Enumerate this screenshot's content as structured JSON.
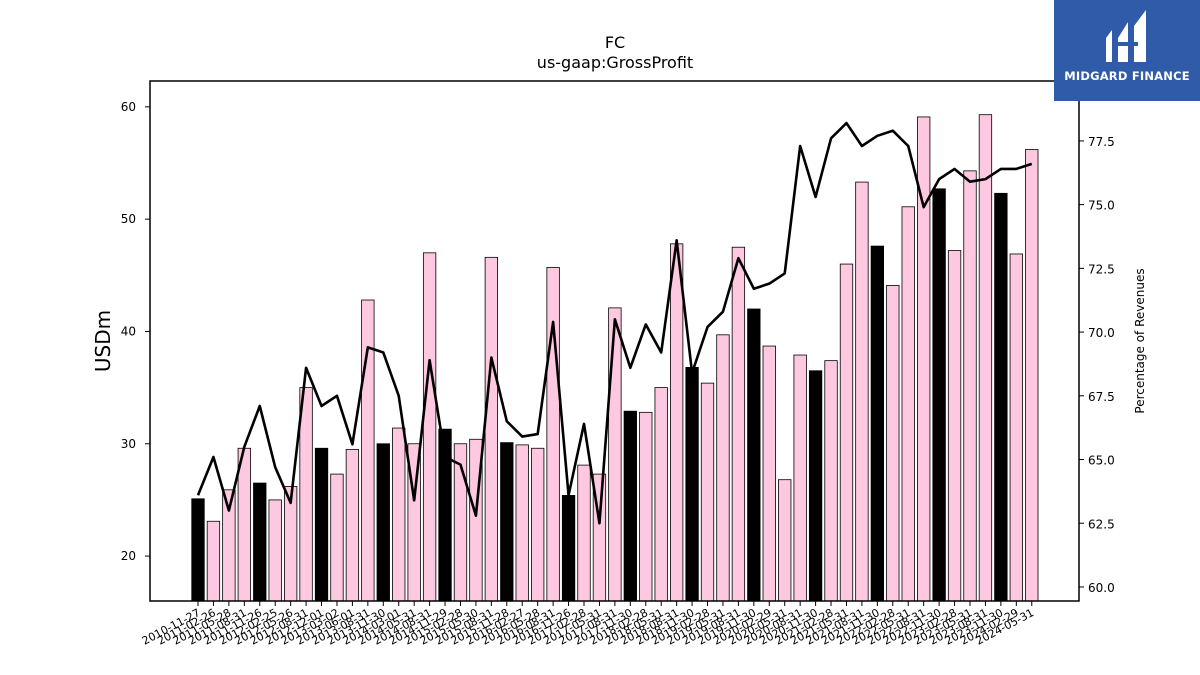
{
  "colors": {
    "bar_pink": "#ffc8e1",
    "bar_black": "#000000",
    "line": "#000000",
    "logo_bg": "#2f5ba8",
    "logo_text": "#ffffff"
  },
  "logo": {
    "icon": "midgard-logo-icon",
    "text": "MIDGARD FINANCE"
  },
  "chart_data": {
    "type": "bar",
    "title": "FC",
    "subtitle": "us-gaap:GrossProfit",
    "ylabel": "USDm",
    "y2label": "Percentage of Revenues",
    "ylim": [
      16,
      62.3
    ],
    "y2lim": [
      59.45,
      79.85
    ],
    "yticks": [
      20,
      30,
      40,
      50,
      60
    ],
    "y2ticks": [
      "60.0",
      "62.5",
      "65.0",
      "67.5",
      "70.0",
      "72.5",
      "75.0",
      "77.5"
    ],
    "grid": false,
    "categories": [
      "2010-11-27",
      "2011-02-26",
      "2011-05-28",
      "2011-08-31",
      "2011-11-26",
      "2012-02-25",
      "2012-05-26",
      "2012-08-31",
      "2012-12-01",
      "2013-03-02",
      "2013-06-01",
      "2013-08-31",
      "2013-11-30",
      "2014-03-01",
      "2014-05-31",
      "2014-08-31",
      "2014-11-29",
      "2015-02-28",
      "2015-05-30",
      "2015-08-31",
      "2015-11-28",
      "2016-02-27",
      "2016-05-28",
      "2016-08-31",
      "2016-11-26",
      "2017-02-28",
      "2017-05-31",
      "2017-08-31",
      "2017-11-30",
      "2018-02-28",
      "2018-05-31",
      "2018-08-31",
      "2018-11-30",
      "2019-02-28",
      "2019-05-31",
      "2019-08-31",
      "2019-11-30",
      "2020-02-29",
      "2020-05-31",
      "2020-08-31",
      "2020-11-30",
      "2021-02-28",
      "2021-05-31",
      "2021-08-31",
      "2021-11-30",
      "2022-02-28",
      "2022-05-31",
      "2022-08-31",
      "2022-11-30",
      "2023-02-28",
      "2023-05-31",
      "2023-08-31",
      "2023-11-30",
      "2024-02-29",
      "2024-05-31"
    ],
    "series": [
      {
        "kind": "bar",
        "values": [
          25.1,
          23.1,
          25.9,
          29.6,
          26.5,
          25.0,
          26.2,
          35.0,
          29.6,
          27.3,
          29.5,
          42.8,
          30.0,
          31.4,
          30.0,
          47.0,
          31.3,
          30.0,
          30.4,
          46.6,
          30.1,
          29.9,
          29.6,
          45.7,
          25.4,
          28.1,
          27.3,
          42.1,
          32.9,
          32.8,
          35.0,
          47.8,
          36.8,
          35.4,
          39.7,
          47.5,
          42.0,
          38.7,
          26.8,
          37.9,
          36.5,
          37.4,
          46.0,
          53.3,
          47.6,
          44.1,
          51.1,
          59.1,
          52.7,
          47.2,
          54.3,
          59.3,
          52.3,
          46.9,
          56.2
        ]
      },
      {
        "kind": "line",
        "axis": "right",
        "values": [
          63.6,
          65.1,
          63.0,
          65.5,
          67.1,
          64.7,
          63.3,
          68.6,
          67.1,
          67.5,
          65.6,
          69.4,
          69.2,
          67.5,
          63.4,
          68.9,
          65.1,
          64.8,
          62.8,
          69.0,
          66.5,
          65.9,
          66.0,
          70.4,
          63.6,
          66.4,
          62.5,
          70.5,
          68.6,
          70.3,
          69.2,
          73.6,
          68.4,
          70.2,
          70.8,
          72.9,
          71.7,
          71.9,
          72.3,
          77.3,
          75.3,
          77.6,
          78.2,
          77.3,
          77.7,
          77.9,
          77.3,
          74.9,
          76.0,
          76.4,
          75.9,
          76.0,
          76.4,
          76.4,
          76.6
        ]
      }
    ]
  }
}
